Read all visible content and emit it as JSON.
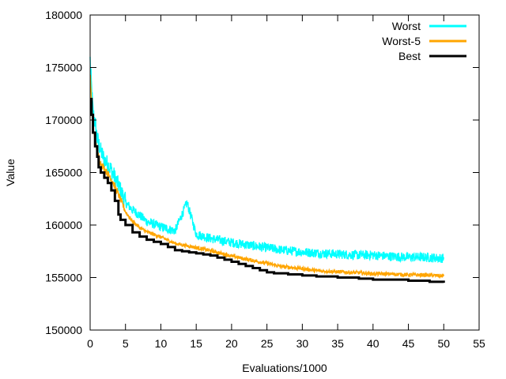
{
  "chart_data": {
    "type": "line",
    "title": "",
    "xlabel": "Evaluations/1000",
    "ylabel": "Value",
    "xlim": [
      0,
      55
    ],
    "ylim": [
      150000,
      180000
    ],
    "x_ticks": [
      0,
      5,
      10,
      15,
      20,
      25,
      30,
      35,
      40,
      45,
      50,
      55
    ],
    "y_ticks": [
      150000,
      155000,
      160000,
      165000,
      170000,
      175000,
      180000
    ],
    "grid": false,
    "legend_position": "top-right",
    "series": [
      {
        "name": "Worst",
        "color": "#00ffff",
        "noisy": true,
        "x": [
          0,
          0.2,
          0.4,
          0.7,
          1.0,
          1.5,
          2,
          3,
          4,
          5,
          6,
          7,
          8,
          10,
          12,
          13.7,
          15,
          17,
          20,
          22,
          25,
          27,
          30,
          32,
          35,
          38,
          40,
          42,
          45,
          47,
          50
        ],
        "y": [
          175500,
          172800,
          170500,
          169500,
          168000,
          166800,
          166000,
          165000,
          163500,
          162000,
          161300,
          160800,
          160200,
          159700,
          159300,
          162000,
          159000,
          158600,
          158200,
          158000,
          157700,
          157500,
          157300,
          157200,
          157100,
          157000,
          157000,
          156900,
          156800,
          156800,
          156700
        ]
      },
      {
        "name": "Worst-5",
        "color": "#ffa500",
        "noisy": true,
        "x": [
          0,
          0.2,
          0.4,
          0.7,
          1.0,
          1.5,
          2,
          3,
          4,
          5,
          6,
          7,
          8,
          10,
          12,
          15,
          17,
          20,
          22,
          25,
          27,
          30,
          32,
          35,
          38,
          40,
          42,
          45,
          47,
          50
        ],
        "y": [
          174500,
          171500,
          169000,
          168000,
          166800,
          165800,
          165300,
          164300,
          162800,
          161200,
          160300,
          159700,
          159300,
          158800,
          158200,
          157800,
          157500,
          157000,
          156700,
          156300,
          156000,
          155800,
          155600,
          155500,
          155400,
          155300,
          155300,
          155200,
          155200,
          155100
        ]
      },
      {
        "name": "Best",
        "color": "#000000",
        "noisy": false,
        "x": [
          0,
          0.2,
          0.4,
          0.7,
          1.0,
          1.2,
          1.5,
          2,
          2.5,
          3,
          3.5,
          4,
          4.3,
          5,
          6,
          7,
          8,
          9,
          10,
          11,
          12,
          13,
          14,
          15,
          16,
          17,
          18,
          19,
          20,
          21,
          22,
          23,
          24,
          25,
          26,
          27,
          28,
          29,
          30,
          32,
          35,
          38,
          40,
          42,
          45,
          48,
          50
        ],
        "y": [
          172000,
          170500,
          168800,
          167500,
          166500,
          165500,
          165000,
          164500,
          164000,
          163300,
          162300,
          161000,
          160500,
          160000,
          159300,
          158900,
          158600,
          158400,
          158200,
          157900,
          157600,
          157500,
          157400,
          157300,
          157200,
          157100,
          156900,
          156700,
          156500,
          156300,
          156100,
          155900,
          155700,
          155500,
          155400,
          155400,
          155300,
          155300,
          155200,
          155100,
          155000,
          154900,
          154800,
          154800,
          154700,
          154600,
          154500
        ]
      }
    ]
  }
}
